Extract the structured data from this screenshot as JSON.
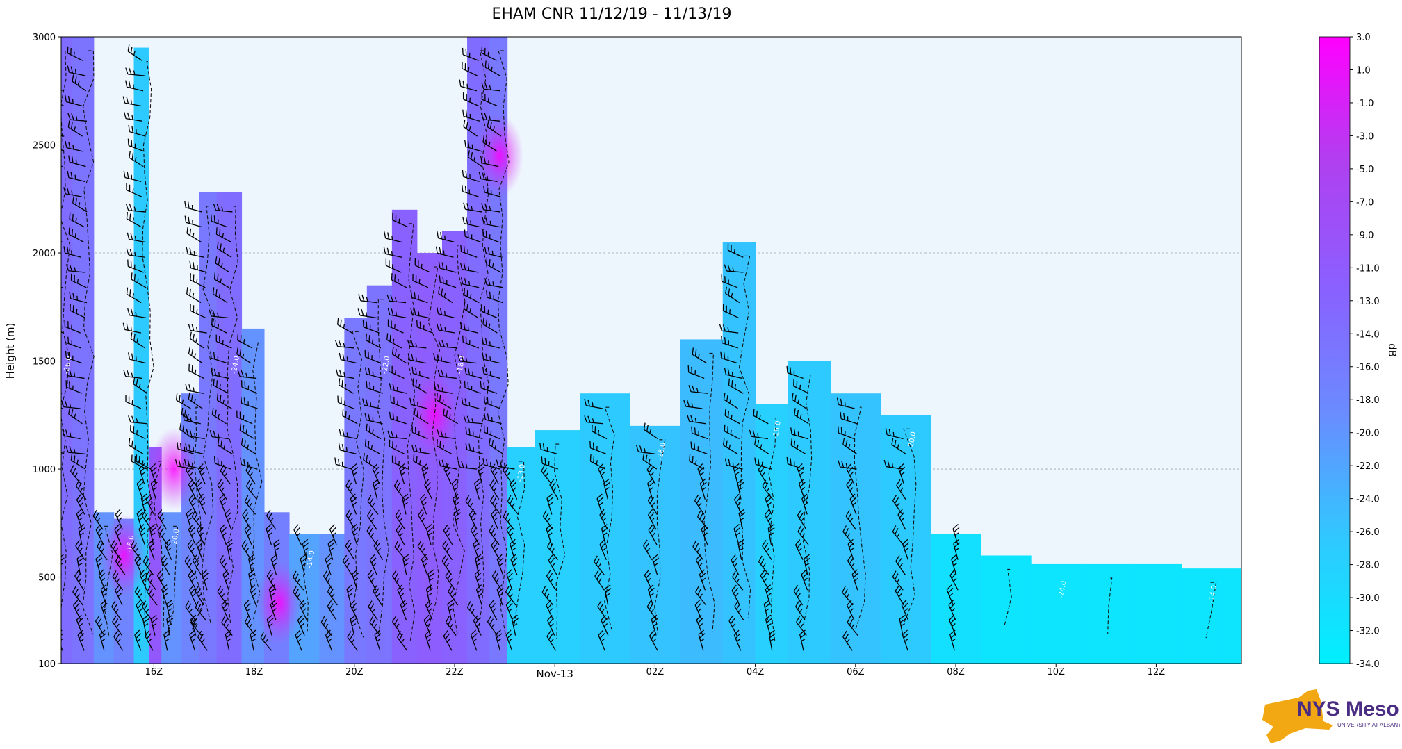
{
  "chart_data": {
    "type": "heatmap",
    "title": "EHAM CNR 11/12/19 - 11/13/19",
    "ylabel": "Height (m)",
    "y_range": [
      100,
      3000
    ],
    "y_ticks": [
      100,
      500,
      1000,
      1500,
      2000,
      2500,
      3000
    ],
    "x_range_hours": [
      14.15,
      37.7
    ],
    "x_ticks": [
      {
        "hour": 16,
        "label": "16Z"
      },
      {
        "hour": 18,
        "label": "18Z"
      },
      {
        "hour": 20,
        "label": "20Z"
      },
      {
        "hour": 22,
        "label": "22Z"
      },
      {
        "hour": 24,
        "label": "Nov-13"
      },
      {
        "hour": 26,
        "label": "02Z"
      },
      {
        "hour": 28,
        "label": "04Z"
      },
      {
        "hour": 30,
        "label": "06Z"
      },
      {
        "hour": 32,
        "label": "08Z"
      },
      {
        "hour": 34,
        "label": "10Z"
      },
      {
        "hour": 36,
        "label": "12Z"
      }
    ],
    "grid": "horizontal dashed",
    "colorbar": {
      "label": "dB",
      "min": -34.0,
      "max": 3.0,
      "ticks": [
        "3.0",
        "1.0",
        "-1.0",
        "-3.0",
        "-5.0",
        "-7.0",
        "-9.0",
        "-11.0",
        "-13.0",
        "-14.0",
        "-16.0",
        "-18.0",
        "-20.0",
        "-22.0",
        "-24.0",
        "-26.0",
        "-28.0",
        "-30.0",
        "-32.0",
        "-34.0"
      ],
      "colors": [
        "#00f0ff",
        "#30c8ff",
        "#6a8cff",
        "#8a60ff",
        "#b040f0",
        "#ff00ff"
      ]
    },
    "background_color": "#eef6fd",
    "columns": [
      {
        "t": 14.15,
        "top": 3000,
        "value": -14
      },
      {
        "t": 14.6,
        "top": 3000,
        "value": -15
      },
      {
        "t": 15.0,
        "top": 800,
        "value": -20
      },
      {
        "t": 15.4,
        "top": 770,
        "value": -18
      },
      {
        "t": 15.8,
        "top": 2950,
        "value": -27
      },
      {
        "t": 16.0,
        "top": 1100,
        "value": -10
      },
      {
        "t": 16.3,
        "top": 800,
        "value": -20
      },
      {
        "t": 16.8,
        "top": 1350,
        "value": -18
      },
      {
        "t": 17.0,
        "top": 2280,
        "value": -16
      },
      {
        "t": 17.5,
        "top": 2280,
        "value": -14
      },
      {
        "t": 18.0,
        "top": 1650,
        "value": -20
      },
      {
        "t": 18.4,
        "top": 800,
        "value": -17
      },
      {
        "t": 19.0,
        "top": 700,
        "value": -22
      },
      {
        "t": 19.6,
        "top": 700,
        "value": -20
      },
      {
        "t": 20.0,
        "top": 1700,
        "value": -16
      },
      {
        "t": 20.5,
        "top": 1850,
        "value": -15
      },
      {
        "t": 21.0,
        "top": 2200,
        "value": -12
      },
      {
        "t": 21.5,
        "top": 2000,
        "value": -11
      },
      {
        "t": 22.0,
        "top": 2100,
        "value": -12
      },
      {
        "t": 22.5,
        "top": 3000,
        "value": -14
      },
      {
        "t": 22.9,
        "top": 3000,
        "value": -16
      },
      {
        "t": 23.2,
        "top": 1100,
        "value": -28
      },
      {
        "t": 24.0,
        "top": 1180,
        "value": -28
      },
      {
        "t": 25.0,
        "top": 1350,
        "value": -27
      },
      {
        "t": 26.0,
        "top": 1200,
        "value": -26
      },
      {
        "t": 27.0,
        "top": 1600,
        "value": -25
      },
      {
        "t": 27.7,
        "top": 2050,
        "value": -26
      },
      {
        "t": 28.3,
        "top": 1300,
        "value": -28
      },
      {
        "t": 29.0,
        "top": 1500,
        "value": -27
      },
      {
        "t": 30.0,
        "top": 1350,
        "value": -26
      },
      {
        "t": 31.0,
        "top": 1250,
        "value": -27
      },
      {
        "t": 32.0,
        "top": 700,
        "value": -31
      },
      {
        "t": 33.0,
        "top": 600,
        "value": -32
      },
      {
        "t": 34.0,
        "top": 560,
        "value": -32
      },
      {
        "t": 35.0,
        "top": 560,
        "value": -32
      },
      {
        "t": 36.0,
        "top": 560,
        "value": -32
      },
      {
        "t": 37.0,
        "top": 540,
        "value": -32
      },
      {
        "t": 37.7,
        "top": 540,
        "value": -32
      }
    ],
    "hotspots": [
      {
        "t": 15.4,
        "h": 600,
        "value": 1
      },
      {
        "t": 18.5,
        "h": 380,
        "value": -3
      },
      {
        "t": 21.6,
        "h": 1250,
        "value": -7
      },
      {
        "t": 16.4,
        "h": 1000,
        "value": -5
      },
      {
        "t": 22.9,
        "h": 2450,
        "value": -11
      }
    ],
    "contour_labels": [
      "-26.0",
      "-24.0",
      "-18.0",
      "-16.0",
      "-14.0",
      "-13.0",
      "-20.0",
      "-22.0"
    ],
    "wind_barbs": true
  },
  "logo": {
    "title": "NYS Mesonet",
    "subtitle": "UNIVERSITY AT ALBANY"
  }
}
